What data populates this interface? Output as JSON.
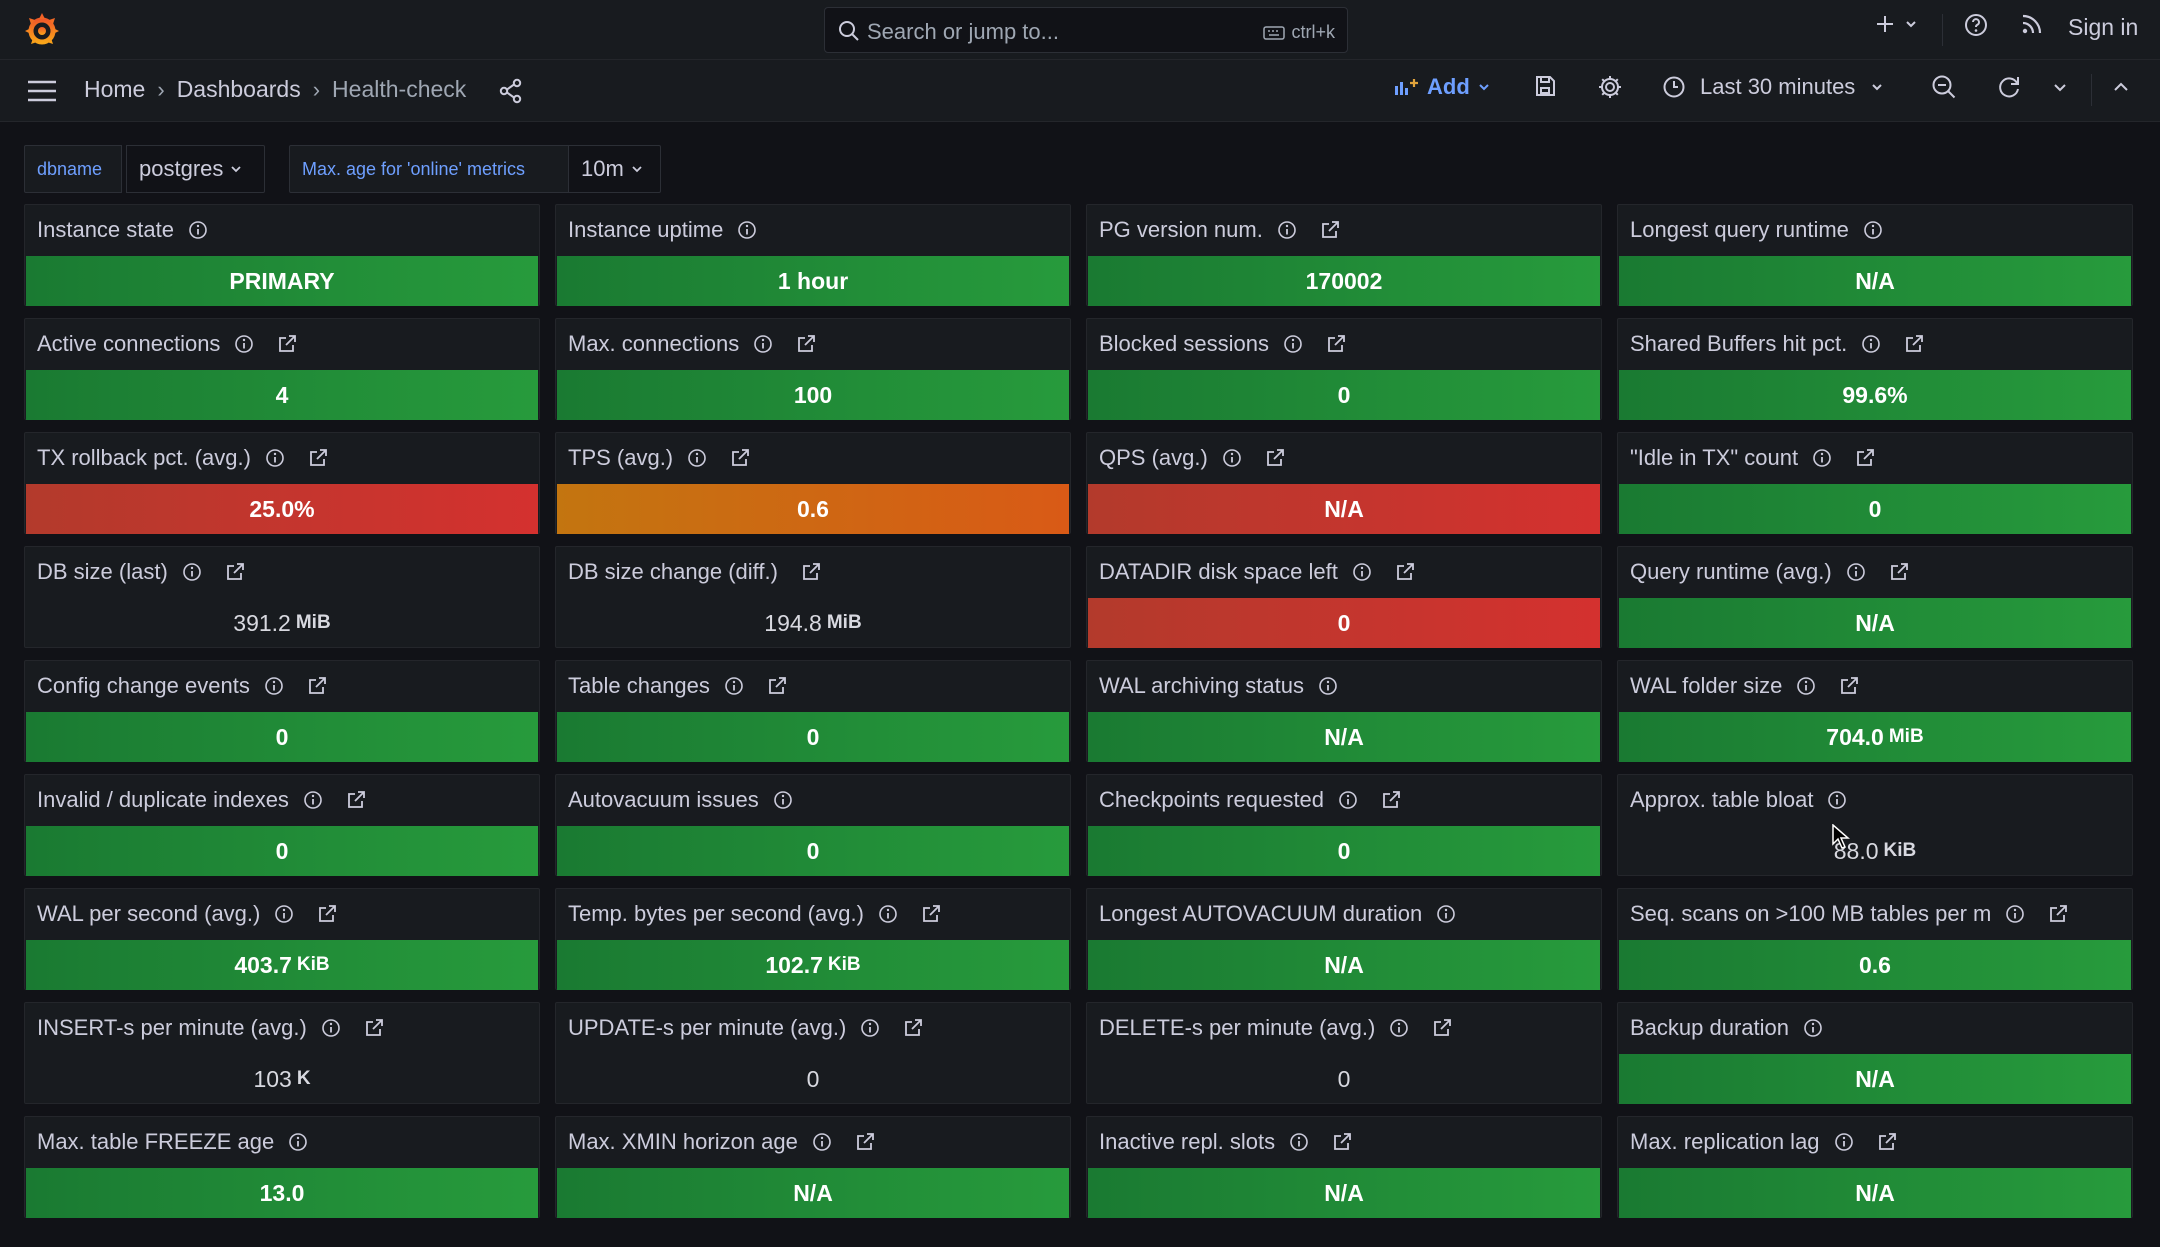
{
  "topbar": {
    "search_placeholder": "Search or jump to...",
    "search_shortcut": "ctrl+k",
    "sign_in": "Sign in"
  },
  "breadcrumb": {
    "home": "Home",
    "dashboards": "Dashboards",
    "current": "Health-check"
  },
  "toolbar": {
    "add_label": "Add",
    "time_range": "Last 30 minutes"
  },
  "variables": [
    {
      "label": "dbname",
      "value": "postgres"
    },
    {
      "label": "Max. age for 'online' metrics",
      "value": "10m"
    }
  ],
  "colors": {
    "green": "#279b3c",
    "red": "#d4312f",
    "orange": "#d95a16",
    "accent": "#6e9fff"
  },
  "panels": [
    {
      "title": "Instance state",
      "value": "PRIMARY",
      "unit": "",
      "status": "green",
      "link": false
    },
    {
      "title": "Instance uptime",
      "value": "1 hour",
      "unit": "",
      "status": "green",
      "link": false
    },
    {
      "title": "PG version num.",
      "value": "170002",
      "unit": "",
      "status": "green",
      "link": true
    },
    {
      "title": "Longest query runtime",
      "value": "N/A",
      "unit": "",
      "status": "green",
      "link": false
    },
    {
      "title": "Active connections",
      "value": "4",
      "unit": "",
      "status": "green",
      "link": true
    },
    {
      "title": "Max. connections",
      "value": "100",
      "unit": "",
      "status": "green",
      "link": true
    },
    {
      "title": "Blocked sessions",
      "value": "0",
      "unit": "",
      "status": "green",
      "link": true
    },
    {
      "title": "Shared Buffers hit pct.",
      "value": "99.6%",
      "unit": "",
      "status": "green",
      "link": true
    },
    {
      "title": "TX rollback pct. (avg.)",
      "value": "25.0%",
      "unit": "",
      "status": "red",
      "link": true
    },
    {
      "title": "TPS (avg.)",
      "value": "0.6",
      "unit": "",
      "status": "orange",
      "link": true
    },
    {
      "title": "QPS (avg.)",
      "value": "N/A",
      "unit": "",
      "status": "red",
      "link": true
    },
    {
      "title": "\"Idle in TX\" count",
      "value": "0",
      "unit": "",
      "status": "green",
      "link": true
    },
    {
      "title": "DB size (last)",
      "value": "391.2",
      "unit": "MiB",
      "status": "none",
      "link": true
    },
    {
      "title": "DB size change (diff.)",
      "value": "194.8",
      "unit": "MiB",
      "status": "none",
      "link": true,
      "no_info": true
    },
    {
      "title": "DATADIR disk space left",
      "value": "0",
      "unit": "",
      "status": "red",
      "link": true
    },
    {
      "title": "Query runtime (avg.)",
      "value": "N/A",
      "unit": "",
      "status": "green",
      "link": true
    },
    {
      "title": "Config change events",
      "value": "0",
      "unit": "",
      "status": "green",
      "link": true
    },
    {
      "title": "Table changes",
      "value": "0",
      "unit": "",
      "status": "green",
      "link": true
    },
    {
      "title": "WAL archiving status",
      "value": "N/A",
      "unit": "",
      "status": "green",
      "link": false
    },
    {
      "title": "WAL folder size",
      "value": "704.0",
      "unit": "MiB",
      "status": "green",
      "link": true
    },
    {
      "title": "Invalid / duplicate indexes",
      "value": "0",
      "unit": "",
      "status": "green",
      "link": true
    },
    {
      "title": "Autovacuum issues",
      "value": "0",
      "unit": "",
      "status": "green",
      "link": false
    },
    {
      "title": "Checkpoints requested",
      "value": "0",
      "unit": "",
      "status": "green",
      "link": true
    },
    {
      "title": "Approx. table bloat",
      "value": "88.0",
      "unit": "KiB",
      "status": "none",
      "link": false
    },
    {
      "title": "WAL per second (avg.)",
      "value": "403.7",
      "unit": "KiB",
      "status": "green",
      "link": true
    },
    {
      "title": "Temp. bytes per second (avg.)",
      "value": "102.7",
      "unit": "KiB",
      "status": "green",
      "link": true
    },
    {
      "title": "Longest AUTOVACUUM duration",
      "value": "N/A",
      "unit": "",
      "status": "green",
      "link": false
    },
    {
      "title": "Seq. scans on >100 MB tables per m",
      "value": "0.6",
      "unit": "",
      "status": "green",
      "link": true
    },
    {
      "title": "INSERT-s per minute (avg.)",
      "value": "103",
      "unit": "K",
      "status": "none",
      "link": true
    },
    {
      "title": "UPDATE-s per minute (avg.)",
      "value": "0",
      "unit": "",
      "status": "none",
      "link": true
    },
    {
      "title": "DELETE-s per minute (avg.)",
      "value": "0",
      "unit": "",
      "status": "none",
      "link": true
    },
    {
      "title": "Backup duration",
      "value": "N/A",
      "unit": "",
      "status": "green",
      "link": false
    },
    {
      "title": "Max. table FREEZE age",
      "value": "13.0",
      "unit": "",
      "status": "green",
      "link": false
    },
    {
      "title": "Max. XMIN horizon age",
      "value": "N/A",
      "unit": "",
      "status": "green",
      "link": true
    },
    {
      "title": "Inactive repl. slots",
      "value": "N/A",
      "unit": "",
      "status": "green",
      "link": true
    },
    {
      "title": "Max. replication lag",
      "value": "N/A",
      "unit": "",
      "status": "green",
      "link": true
    }
  ]
}
